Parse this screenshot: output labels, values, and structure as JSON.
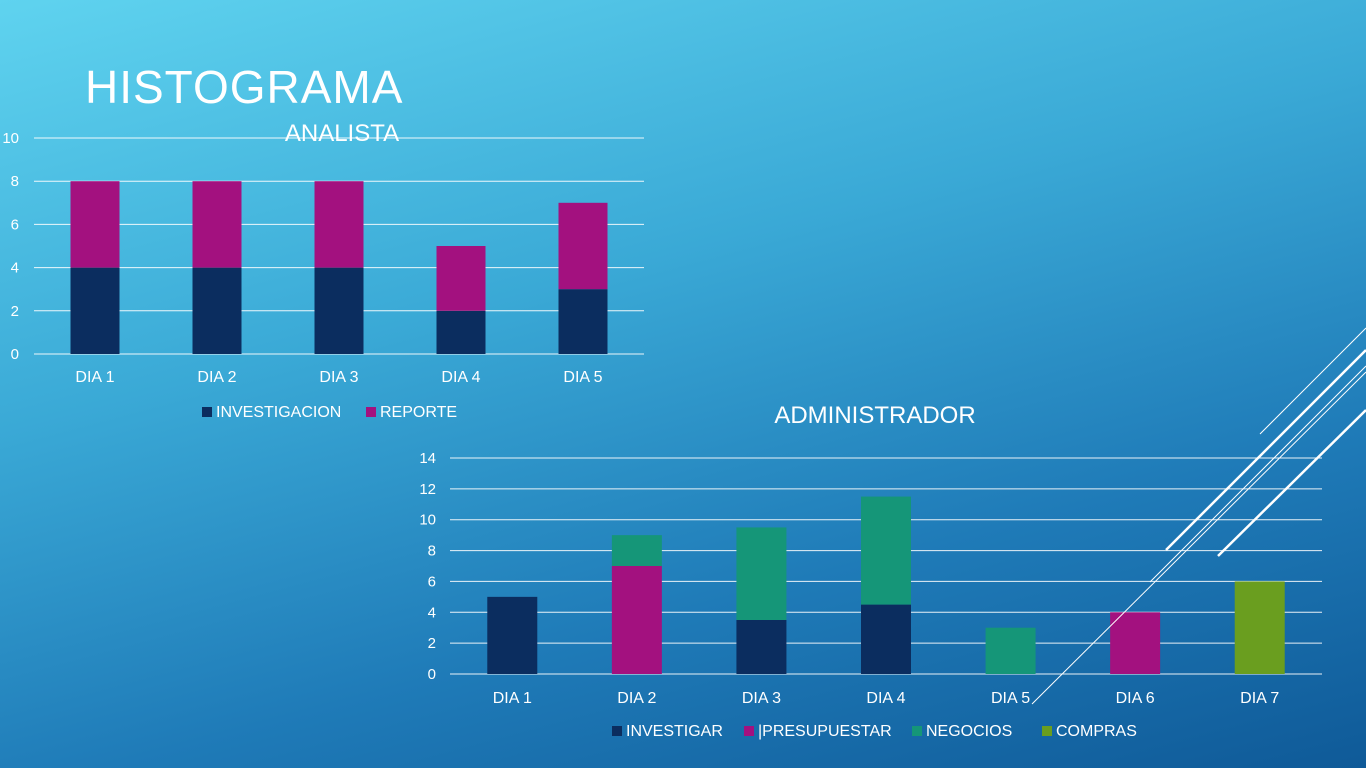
{
  "slide": {
    "title": "HISTOGRAMA"
  },
  "colors": {
    "investigacion": "#0b2d5f",
    "reporte": "#a3117f",
    "negocios": "#159678",
    "compras": "#6a9e1f"
  },
  "chart_data": [
    {
      "type": "bar",
      "stacked": true,
      "title": "ANALISTA",
      "categories": [
        "DIA 1",
        "DIA 2",
        "DIA 3",
        "DIA 4",
        "DIA 5"
      ],
      "series": [
        {
          "name": "INVESTIGACION",
          "color": "#0b2d5f",
          "values": [
            4,
            4,
            4,
            2,
            3
          ]
        },
        {
          "name": "REPORTE",
          "color": "#a3117f",
          "values": [
            4,
            4,
            4,
            3,
            4
          ]
        }
      ],
      "ylim": [
        0,
        10
      ],
      "yticks": [
        0,
        2,
        4,
        6,
        8,
        10
      ],
      "grid": true,
      "legend": "bottom"
    },
    {
      "type": "bar",
      "stacked": true,
      "title": "ADMINISTRADOR",
      "categories": [
        "DIA 1",
        "DIA 2",
        "DIA 3",
        "DIA 4",
        "DIA 5",
        "DIA 6",
        "DIA 7"
      ],
      "series": [
        {
          "name": "INVESTIGAR",
          "color": "#0b2d5f",
          "values": [
            5,
            0,
            3.5,
            4.5,
            0,
            0,
            0
          ]
        },
        {
          "name": "|PRESUPUESTAR",
          "color": "#a3117f",
          "values": [
            0,
            7,
            0,
            0,
            0,
            4,
            0
          ]
        },
        {
          "name": "NEGOCIOS",
          "color": "#159678",
          "values": [
            0,
            2,
            6,
            7,
            3,
            0,
            0
          ]
        },
        {
          "name": "COMPRAS",
          "color": "#6a9e1f",
          "values": [
            0,
            0,
            0,
            0,
            0,
            0,
            6
          ]
        }
      ],
      "ylim": [
        0,
        14
      ],
      "yticks": [
        0,
        2,
        4,
        6,
        8,
        10,
        12,
        14
      ],
      "grid": true,
      "legend": "bottom"
    }
  ]
}
